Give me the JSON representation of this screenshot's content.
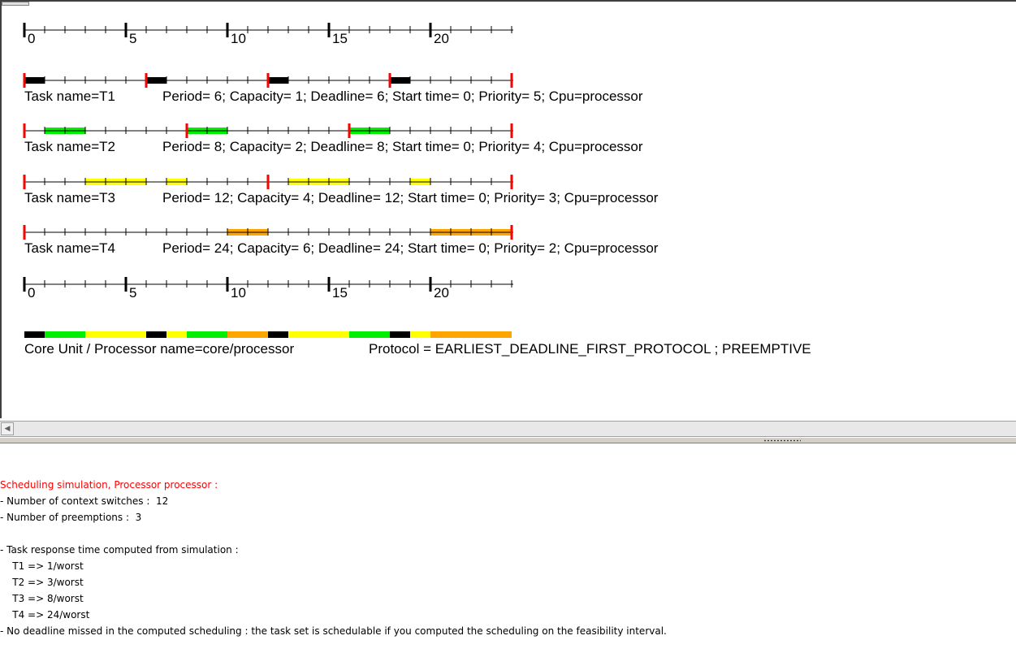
{
  "timeline": {
    "ticks": [
      0,
      1,
      2,
      3,
      4,
      5,
      6,
      7,
      8,
      9,
      10,
      11,
      12,
      13,
      14,
      15,
      16,
      17,
      18,
      19,
      20,
      21,
      22,
      23,
      24
    ],
    "major_labels": [
      "0",
      "5",
      "10",
      "15",
      "20"
    ]
  },
  "tasks": [
    {
      "name_label": "Task name=T1",
      "params_label": "Period= 6; Capacity= 1; Deadline= 6; Start time= 0; Priority= 5; Cpu=processor",
      "color": "#000000",
      "periods": [
        0,
        6,
        12,
        18,
        24
      ],
      "exec": [
        [
          0,
          1
        ],
        [
          6,
          7
        ],
        [
          12,
          13
        ],
        [
          18,
          19
        ]
      ]
    },
    {
      "name_label": "Task name=T2",
      "params_label": "Period= 8; Capacity= 2; Deadline= 8; Start time= 0; Priority= 4; Cpu=processor",
      "color": "#00ee00",
      "periods": [
        0,
        8,
        16,
        24
      ],
      "exec": [
        [
          1,
          3
        ],
        [
          8,
          10
        ],
        [
          16,
          18
        ]
      ]
    },
    {
      "name_label": "Task name=T3",
      "params_label": "Period= 12; Capacity= 4; Deadline= 12; Start time= 0; Priority= 3; Cpu=processor",
      "color": "#ffff00",
      "periods": [
        0,
        12,
        24
      ],
      "exec": [
        [
          3,
          6
        ],
        [
          7,
          8
        ],
        [
          13,
          16
        ],
        [
          19,
          20
        ]
      ]
    },
    {
      "name_label": "Task name=T4",
      "params_label": "Period= 24; Capacity= 6; Deadline= 24; Start time= 0; Priority= 2; Cpu=processor",
      "color": "#ffa500",
      "periods": [
        0,
        24
      ],
      "exec": [
        [
          10,
          12
        ],
        [
          20,
          24
        ]
      ]
    }
  ],
  "processor": {
    "name_label": "Core Unit / Processor name=core/processor",
    "protocol_label": "Protocol = EARLIEST_DEADLINE_FIRST_PROTOCOL ; PREEMPTIVE",
    "segments": [
      {
        "from": 0,
        "to": 1,
        "color": "#000000"
      },
      {
        "from": 1,
        "to": 3,
        "color": "#00ee00"
      },
      {
        "from": 3,
        "to": 6,
        "color": "#ffff00"
      },
      {
        "from": 6,
        "to": 7,
        "color": "#000000"
      },
      {
        "from": 7,
        "to": 8,
        "color": "#ffff00"
      },
      {
        "from": 8,
        "to": 10,
        "color": "#00ee00"
      },
      {
        "from": 10,
        "to": 12,
        "color": "#ffa500"
      },
      {
        "from": 12,
        "to": 13,
        "color": "#000000"
      },
      {
        "from": 13,
        "to": 16,
        "color": "#ffff00"
      },
      {
        "from": 16,
        "to": 18,
        "color": "#00ee00"
      },
      {
        "from": 18,
        "to": 19,
        "color": "#000000"
      },
      {
        "from": 19,
        "to": 20,
        "color": "#ffff00"
      },
      {
        "from": 20,
        "to": 24,
        "color": "#ffa500"
      }
    ]
  },
  "output": {
    "title": "Scheduling simulation, Processor processor :",
    "context_switches": "- Number of context switches :  12",
    "preemptions": "- Number of preemptions :  3",
    "response_header": "- Task response time computed from simulation :",
    "responses": [
      "    T1 => 1/worst",
      "    T2 => 3/worst",
      "    T3 => 8/worst",
      "    T4 => 24/worst"
    ],
    "conclusion": "- No deadline missed in the computed scheduling : the task set is schedulable if you computed the scheduling on the feasibility interval."
  },
  "colors": {
    "deadline_marker": "#ff0000",
    "title_text": "#ff0000"
  }
}
